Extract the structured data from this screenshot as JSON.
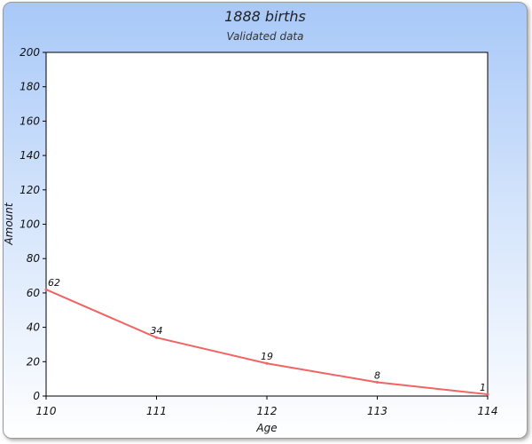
{
  "chart_data": {
    "type": "line",
    "title": "1888 births",
    "subtitle": "Validated data",
    "xlabel": "Age",
    "ylabel": "Amount",
    "x": [
      110,
      111,
      112,
      113,
      114
    ],
    "series": [
      {
        "values": [
          62,
          34,
          19,
          8,
          1
        ],
        "color": "#f06464"
      }
    ],
    "ylim": [
      0,
      200
    ],
    "yticks": [
      0,
      20,
      40,
      60,
      80,
      100,
      120,
      140,
      160,
      180,
      200
    ],
    "xticks": [
      "110",
      "111",
      "112",
      "113",
      "114"
    ],
    "data_labels": [
      "62",
      "34",
      "19",
      "8",
      "1"
    ],
    "grid": false,
    "legend": "none"
  }
}
